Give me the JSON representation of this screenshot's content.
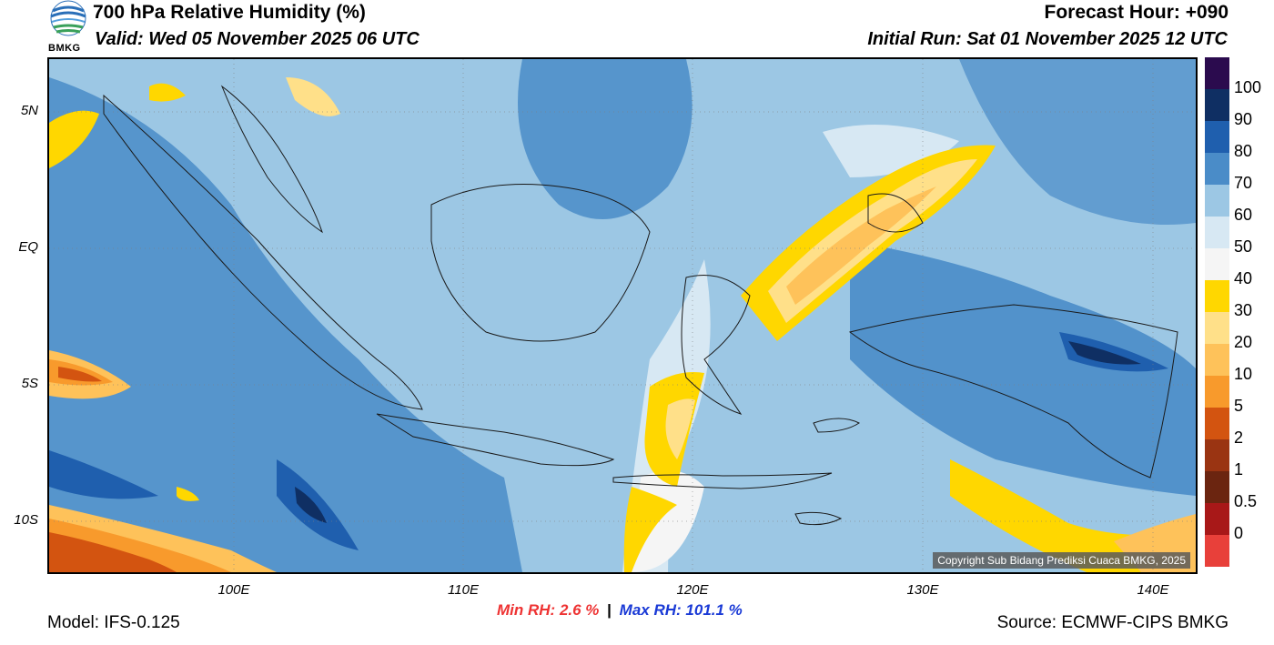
{
  "header": {
    "title": "700 hPa Relative Humidity (%)",
    "valid": "Valid: Wed 05 November 2025 06 UTC",
    "forecast_hour": "Forecast Hour: +090",
    "initial_run": "Initial Run: Sat 01 November 2025 12 UTC"
  },
  "logo": {
    "text": "BMKG"
  },
  "map": {
    "copyright": "Copyright Sub Bidang Prediksi Cuaca BMKG, 2025",
    "lat_labels": [
      "5N",
      "EQ",
      "5S",
      "10S"
    ],
    "lon_labels": [
      "100E",
      "110E",
      "120E",
      "130E",
      "140E"
    ]
  },
  "colorbar": {
    "labels": [
      "100",
      "90",
      "80",
      "70",
      "60",
      "50",
      "40",
      "30",
      "20",
      "10",
      "5",
      "2",
      "1",
      "0.5",
      "0"
    ],
    "colors": [
      "#2b0b4e",
      "#0f2f63",
      "#1f5fae",
      "#4a8cc8",
      "#9cc7e4",
      "#d7e8f3",
      "#f5f5f5",
      "#ffd700",
      "#ffe089",
      "#fec25a",
      "#f89a2c",
      "#d35410",
      "#9a3412",
      "#6b2510",
      "#a81818",
      "#e8403a"
    ]
  },
  "stats": {
    "min_label": "Min RH:",
    "min_value": "2.6 %",
    "separator": "|",
    "max_label": "Max RH:",
    "max_value": "101.1 %"
  },
  "footer": {
    "model": "Model: IFS-0.125",
    "source": "Source: ECMWF-CIPS BMKG"
  }
}
